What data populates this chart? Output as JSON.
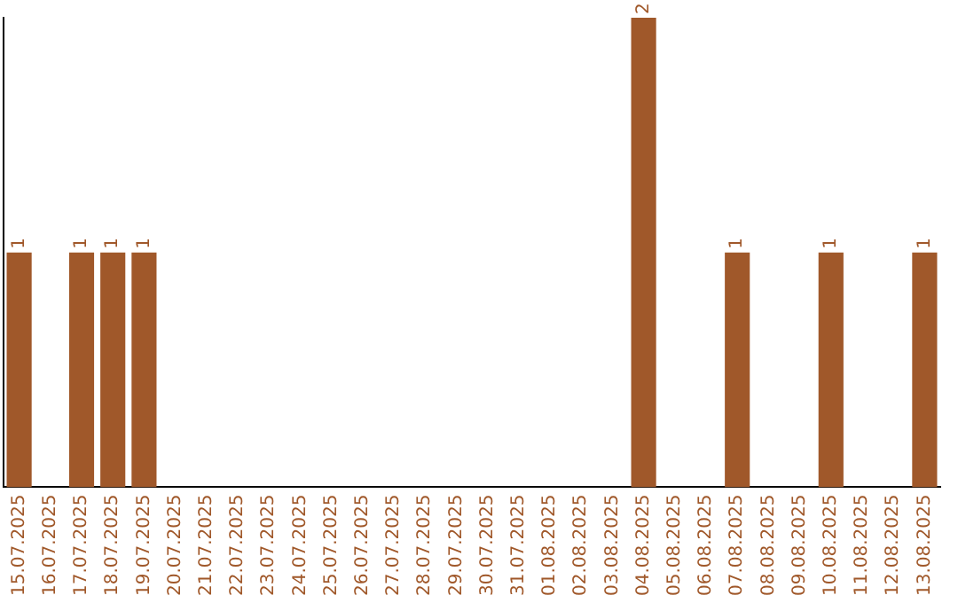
{
  "chart_data": {
    "type": "bar",
    "categories": [
      "15.07.2025",
      "16.07.2025",
      "17.07.2025",
      "18.07.2025",
      "19.07.2025",
      "20.07.2025",
      "21.07.2025",
      "22.07.2025",
      "23.07.2025",
      "24.07.2025",
      "25.07.2025",
      "26.07.2025",
      "27.07.2025",
      "28.07.2025",
      "29.07.2025",
      "30.07.2025",
      "31.07.2025",
      "01.08.2025",
      "02.08.2025",
      "03.08.2025",
      "04.08.2025",
      "05.08.2025",
      "06.08.2025",
      "07.08.2025",
      "08.08.2025",
      "09.08.2025",
      "10.08.2025",
      "11.08.2025",
      "12.08.2025",
      "13.08.2025"
    ],
    "values": [
      1,
      0,
      1,
      1,
      1,
      0,
      0,
      0,
      0,
      0,
      0,
      0,
      0,
      0,
      0,
      0,
      0,
      0,
      0,
      0,
      2,
      0,
      0,
      1,
      0,
      0,
      1,
      0,
      0,
      1
    ],
    "value_labels": [
      "1",
      null,
      "1",
      "1",
      "1",
      null,
      null,
      null,
      null,
      null,
      null,
      null,
      null,
      null,
      null,
      null,
      null,
      null,
      null,
      null,
      "2",
      null,
      null,
      "1",
      null,
      null,
      "1",
      null,
      null,
      "1"
    ],
    "color": "#a0582a",
    "grid": false,
    "legend": false,
    "tick_labels": "x"
  }
}
